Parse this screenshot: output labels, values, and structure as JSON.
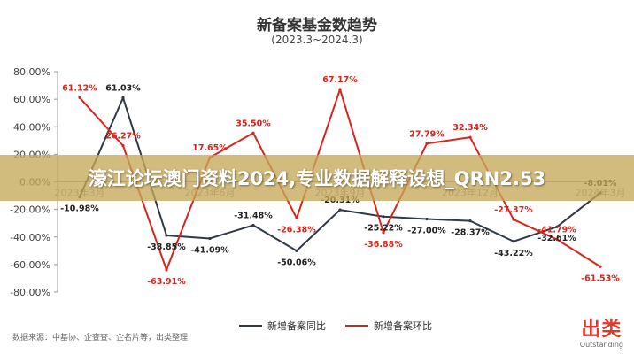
{
  "chart_data": {
    "type": "line",
    "title": "新备案基金数趋势",
    "subtitle": "(2023.3~2024.3)",
    "ylim": [
      -80,
      80
    ],
    "yticks": [
      "80.00%",
      "60.00%",
      "40.00%",
      "20.00%",
      "0.00%",
      "-20.00%",
      "-40.00%",
      "-60.00%",
      "-80.00%"
    ],
    "x_tick_labels": [
      "2023年3月",
      "2023年6月",
      "2023年9月",
      "2023年12月",
      "2024年3月"
    ],
    "x_tick_index": [
      0,
      3,
      6,
      9,
      12
    ],
    "series": [
      {
        "name": "新增备案同比",
        "color": "#2f3947",
        "values": [
          -10.98,
          61.03,
          -38.85,
          -41.09,
          -31.48,
          -50.06,
          -20.31,
          -25.22,
          -27.0,
          -28.37,
          -43.22,
          -32.61,
          -8.01
        ],
        "labels": [
          "-10.98%",
          "61.03%",
          "-38.85%",
          "-41.09%",
          "-31.48%",
          "-50.06%",
          "-20.31%",
          "-25.22%",
          "-27.00%",
          "-28.37%",
          "-43.22%",
          "-32.61%",
          "-8.01%"
        ]
      },
      {
        "name": "新增备案环比",
        "color": "#d9241c",
        "values": [
          61.12,
          26.27,
          -63.91,
          17.65,
          35.5,
          -26.38,
          67.17,
          -36.88,
          27.79,
          32.34,
          -27.37,
          -41.79,
          -61.53
        ],
        "labels": [
          "61.12%",
          "26.27%",
          "-63.91%",
          "17.65%",
          "35.50%",
          "-26.38%",
          "67.17%",
          "-36.88%",
          "27.79%",
          "32.34%",
          "-27.37%",
          "-41.79%",
          "-61.53%"
        ]
      }
    ],
    "legend_position": "bottom-center",
    "grid": false
  },
  "source_text": "数据来源：中基协、企查查、企名片等，出类整理",
  "brand": {
    "main": "出类",
    "sub": "Outstanding"
  },
  "banner_text": "濠江论坛澳门资料2024,专业数据解释设想_QRN2.53"
}
